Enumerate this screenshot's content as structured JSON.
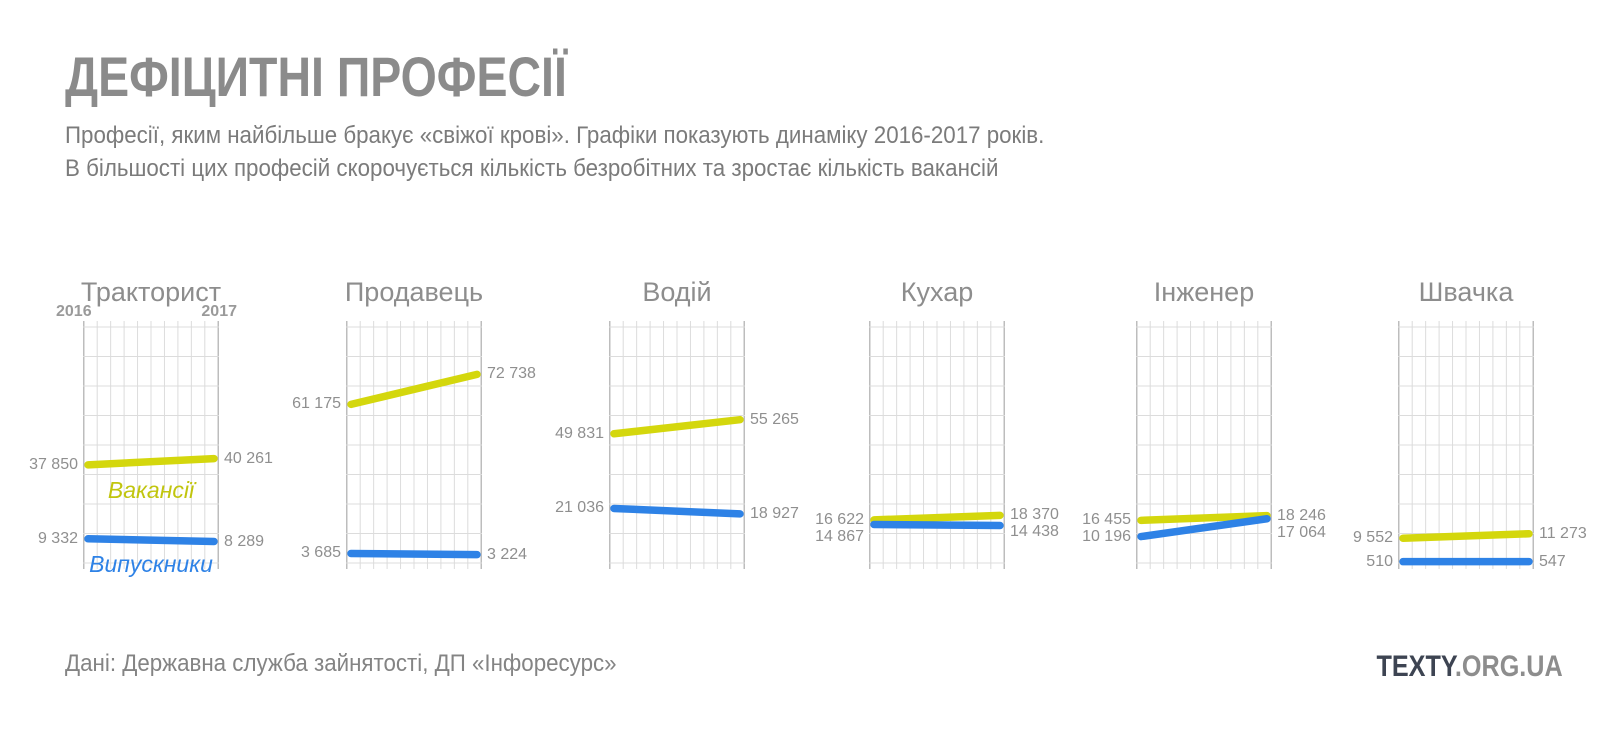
{
  "header": {
    "title": "ДЕФІЦИТНІ ПРОФЕСІЇ",
    "subtitle_line1": "Професії, яким найбільше бракує «свіжої крові». Графіки показують динаміку 2016-2017 років.",
    "subtitle_line2": "В більшості цих професій скорочується кількість безробітних та зростає кількість вакансій"
  },
  "footer": {
    "source": "Дані: Державна служба зайнятості, ДП «Інфоресурс»",
    "logo_primary": "TEXTY",
    "logo_secondary": ".ORG.UA"
  },
  "chart_data": {
    "type": "line",
    "x_labels": [
      "2016",
      "2017"
    ],
    "ylim": [
      0,
      91000
    ],
    "grid": true,
    "legend_position": "inside-first-chart",
    "series_names": {
      "vacancies": "Вакансії",
      "graduates": "Випускники"
    },
    "colors": {
      "vacancies": "#d4d70d",
      "graduates": "#2e82e6",
      "grid": "#dcdcdc",
      "grid_edge": "#bdbdbd",
      "value_labels": "#8f8f8f"
    },
    "charts": [
      {
        "title": "Тракторист",
        "legend": true,
        "series": [
          {
            "key": "vacancies",
            "name": "Вакансії",
            "values": [
              37850,
              40261
            ]
          },
          {
            "key": "graduates",
            "name": "Випускники",
            "values": [
              9332,
              8289
            ]
          }
        ]
      },
      {
        "title": "Продавець",
        "series": [
          {
            "key": "vacancies",
            "name": "Вакансії",
            "values": [
              61175,
              72738
            ]
          },
          {
            "key": "graduates",
            "name": "Випускники",
            "values": [
              3685,
              3224
            ]
          }
        ]
      },
      {
        "title": "Водій",
        "series": [
          {
            "key": "vacancies",
            "name": "Вакансії",
            "values": [
              49831,
              55265
            ]
          },
          {
            "key": "graduates",
            "name": "Випускники",
            "values": [
              21036,
              18927
            ]
          }
        ]
      },
      {
        "title": "Кухар",
        "series": [
          {
            "key": "vacancies",
            "name": "Вакансії",
            "values": [
              16622,
              18370
            ]
          },
          {
            "key": "graduates",
            "name": "Випускники",
            "values": [
              14867,
              14438
            ]
          }
        ]
      },
      {
        "title": "Інженер",
        "series": [
          {
            "key": "vacancies",
            "name": "Вакансії",
            "values": [
              16455,
              18246
            ]
          },
          {
            "key": "graduates",
            "name": "Випускники",
            "values": [
              10196,
              17064
            ]
          }
        ]
      },
      {
        "title": "Швачка",
        "series": [
          {
            "key": "vacancies",
            "name": "Вакансії",
            "values": [
              9552,
              11273
            ]
          },
          {
            "key": "graduates",
            "name": "Випускники",
            "values": [
              510,
              547
            ]
          }
        ]
      }
    ]
  }
}
